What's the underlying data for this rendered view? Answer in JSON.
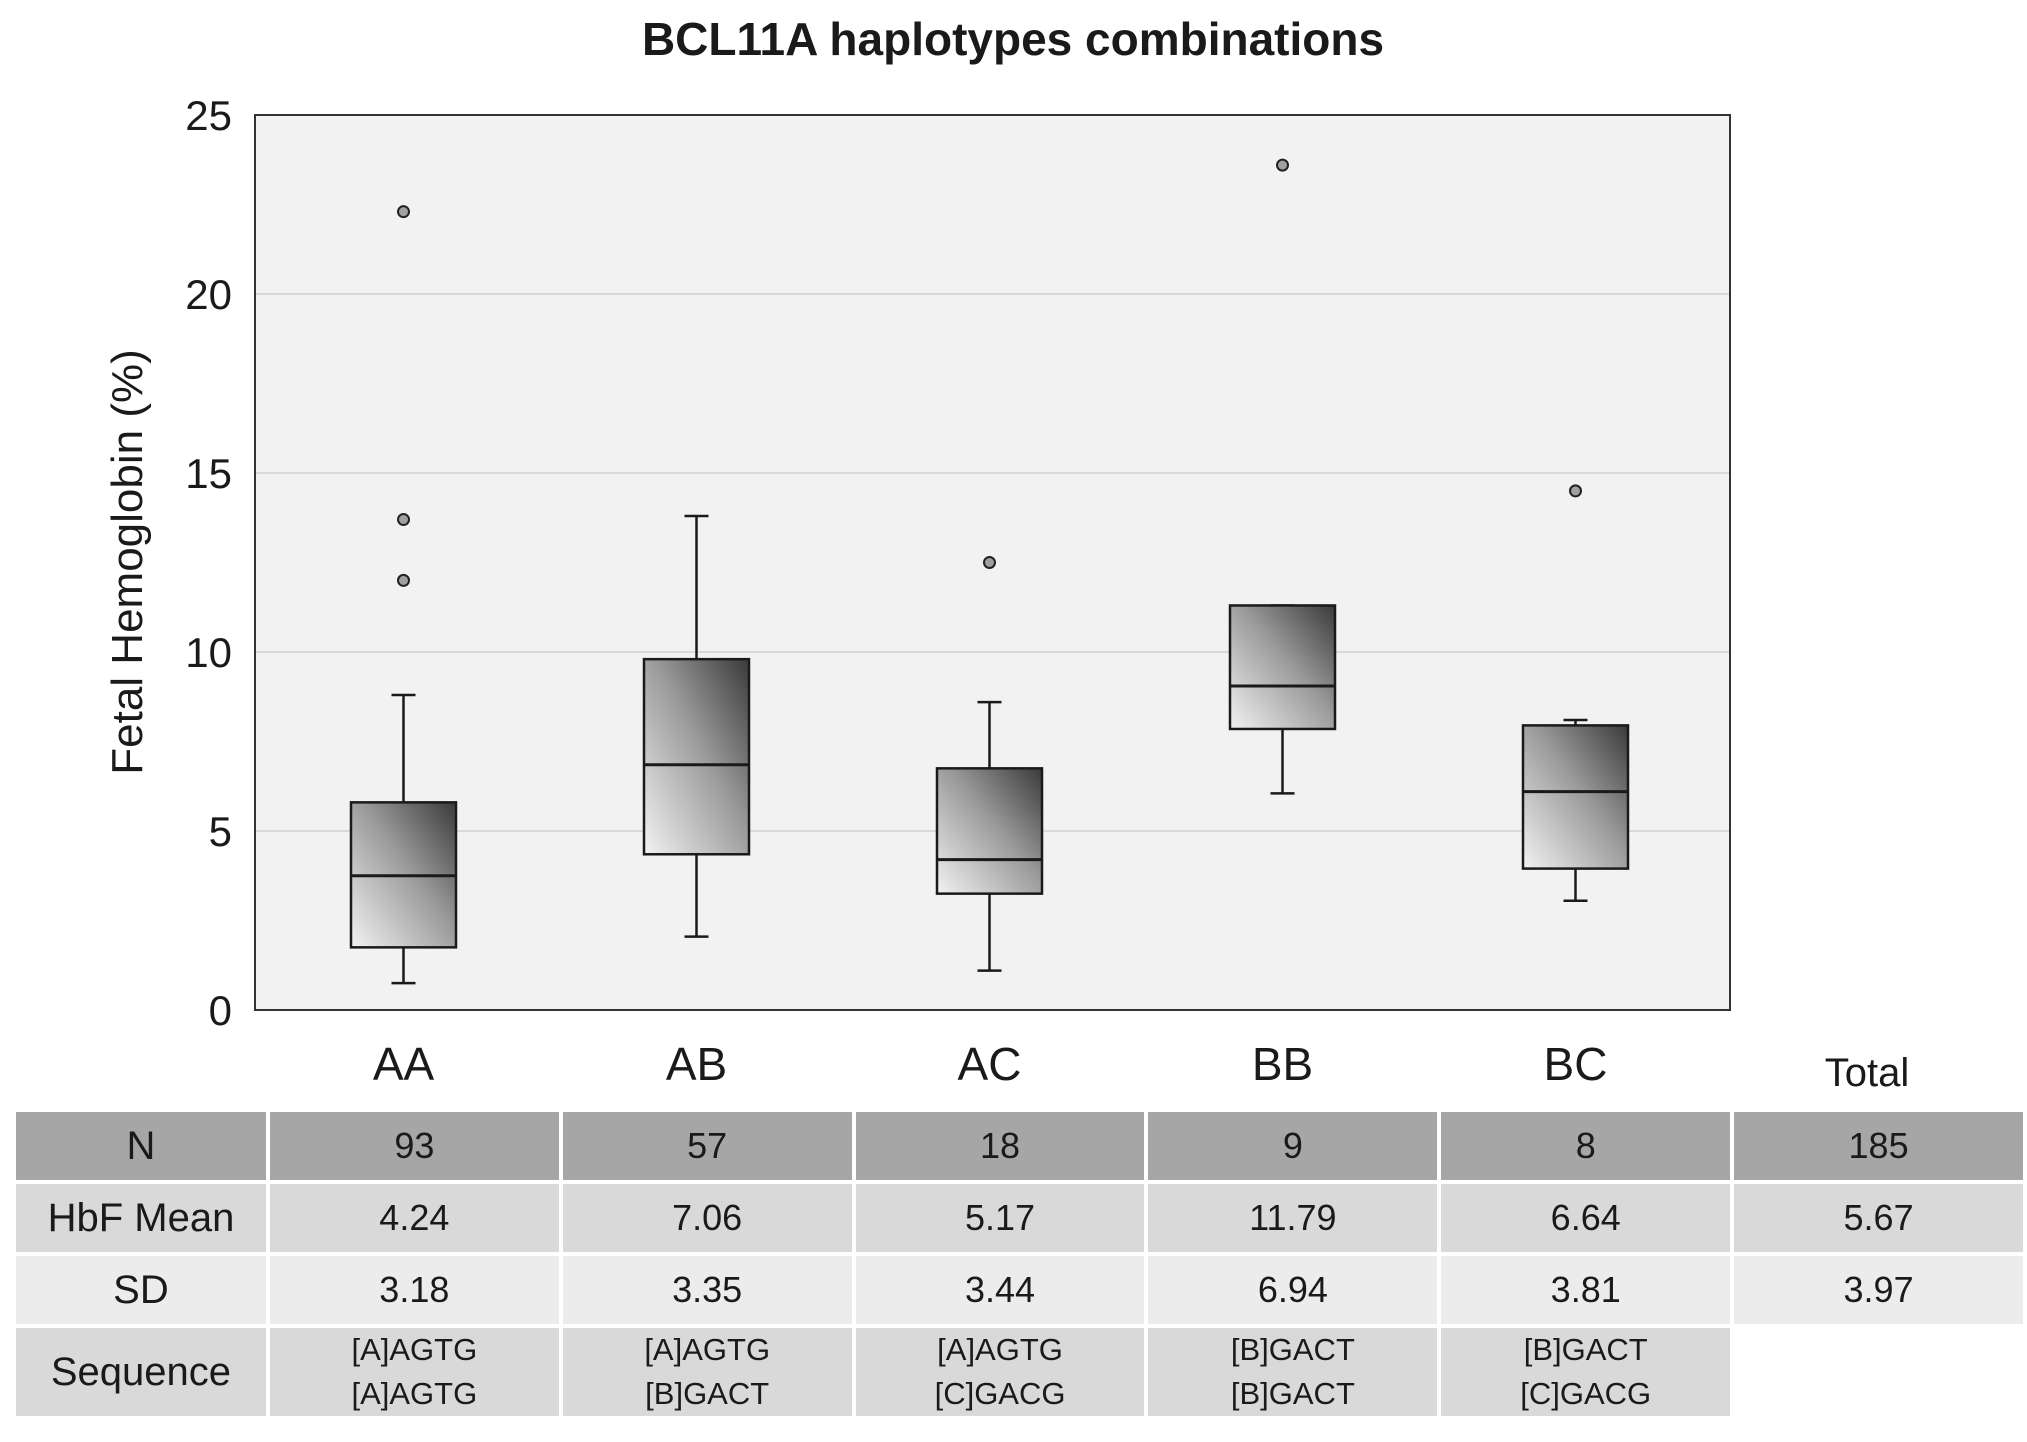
{
  "chart_data": {
    "type": "boxplot",
    "title": "BCL11A haplotypes combinations",
    "ylabel": "Fetal Hemoglobin (%)",
    "xlabel": "",
    "ylim": [
      0,
      25
    ],
    "yticks": [
      0,
      5,
      10,
      15,
      20,
      25
    ],
    "grid": true,
    "categories": [
      "AA",
      "AB",
      "AC",
      "BB",
      "BC"
    ],
    "boxes": [
      {
        "category": "AA",
        "whisker_low": 0.75,
        "q1": 1.75,
        "median": 3.75,
        "q3": 5.8,
        "whisker_high": 8.8,
        "outliers": [
          12.0,
          13.7,
          22.3
        ]
      },
      {
        "category": "AB",
        "whisker_low": 2.05,
        "q1": 4.35,
        "median": 6.85,
        "q3": 9.8,
        "whisker_high": 13.8,
        "outliers": []
      },
      {
        "category": "AC",
        "whisker_low": 1.1,
        "q1": 3.25,
        "median": 4.2,
        "q3": 6.75,
        "whisker_high": 8.6,
        "outliers": [
          12.5
        ]
      },
      {
        "category": "BB",
        "whisker_low": 6.05,
        "q1": 7.85,
        "median": 9.05,
        "q3": 11.3,
        "whisker_high": 11.3,
        "outliers": [
          23.6
        ]
      },
      {
        "category": "BC",
        "whisker_low": 3.05,
        "q1": 3.95,
        "median": 6.1,
        "q3": 7.95,
        "whisker_high": 8.1,
        "outliers": [
          14.5
        ]
      }
    ]
  },
  "table": {
    "total_header": "Total",
    "rows": [
      {
        "label": "N",
        "values": [
          "93",
          "57",
          "18",
          "9",
          "8"
        ],
        "total": "185"
      },
      {
        "label": "HbF Mean",
        "values": [
          "4.24",
          "7.06",
          "5.17",
          "11.79",
          "6.64"
        ],
        "total": "5.67"
      },
      {
        "label": "SD",
        "values": [
          "3.18",
          "3.35",
          "3.44",
          "6.94",
          "3.81"
        ],
        "total": "3.97"
      },
      {
        "label": "Sequence",
        "values": [
          [
            "[A]AGTG",
            "[A]AGTG"
          ],
          [
            "[A]AGTG",
            "[B]GACT"
          ],
          [
            "[A]AGTG",
            "[C]GACG"
          ],
          [
            "[B]GACT",
            "[B]GACT"
          ],
          [
            "[B]GACT",
            "[C]GACG"
          ]
        ],
        "total": ""
      }
    ]
  }
}
